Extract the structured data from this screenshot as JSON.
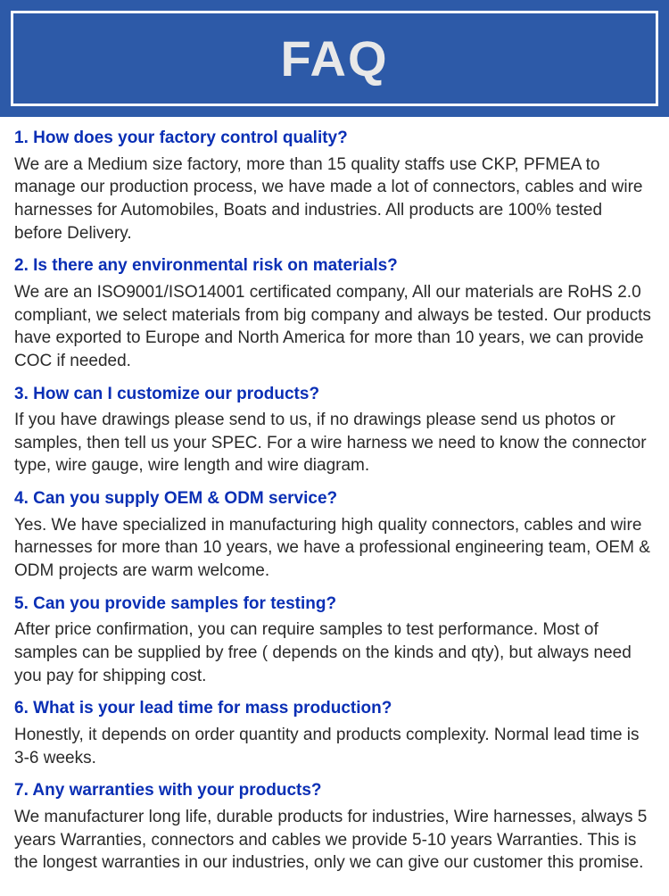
{
  "header": {
    "title": "FAQ",
    "background_color": "#2d5aa8",
    "border_color": "#ffffff",
    "title_color": "#e8e8e8",
    "title_fontsize": 56
  },
  "styling": {
    "question_color": "#0a2fb5",
    "question_fontsize": 19,
    "question_fontweight": "bold",
    "answer_color": "#2a2a2a",
    "answer_fontsize": 19,
    "body_background": "#ffffff"
  },
  "faqs": [
    {
      "question": "1. How does your factory control quality?",
      "answer": "We are a Medium size factory, more than 15 quality staffs use CKP, PFMEA to manage our production process, we have made a lot of connectors, cables and wire harnesses for Automobiles, Boats and industries. All products are 100% tested before Delivery."
    },
    {
      "question": "2. Is there any environmental risk on materials?",
      "answer": "We are an ISO9001/ISO14001 certificated company, All our materials are RoHS 2.0 compliant, we select materials from big company and always be tested. Our products have exported to Europe and North America for more than 10 years, we can provide COC if needed."
    },
    {
      "question": "3. How can I customize our products?",
      "answer": "If you have drawings please send to us, if no drawings please send us photos or samples, then tell us your SPEC. For a wire harness we need to know the connector type, wire gauge, wire length and wire diagram."
    },
    {
      "question": "4. Can you supply OEM & ODM service?",
      "answer": "Yes. We have specialized in manufacturing high quality connectors, cables and wire harnesses for more than 10 years, we have a professional engineering team, OEM & ODM projects are warm welcome."
    },
    {
      "question": "5. Can you provide samples for testing?",
      "answer": "After price confirmation, you can require samples to test performance. Most of samples can be supplied by free ( depends on the kinds and qty), but always need you pay for shipping cost."
    },
    {
      "question": "6. What is your lead time for mass production?",
      "answer": "Honestly, it depends on order quantity and products complexity. Normal lead time is 3-6 weeks."
    },
    {
      "question": "7. Any warranties with your products?",
      "answer": "We manufacturer long life, durable products for industries, Wire harnesses, always 5 years Warranties, connectors and cables we provide 5-10 years Warranties. This is the longest warranties in our industries, only we can give our customer this promise."
    }
  ]
}
